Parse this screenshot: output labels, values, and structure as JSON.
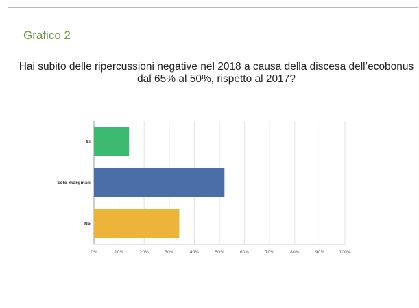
{
  "figure_label": "Grafico 2",
  "chart_data": {
    "type": "bar",
    "orientation": "horizontal",
    "title": "Hai subito delle ripercussioni negative nel 2018 a causa della discesa dell’ecobonus dal 65% al 50%, rispetto al 2017?",
    "categories": [
      "Sì",
      "Solo marginali",
      "No"
    ],
    "values": [
      14,
      52,
      34
    ],
    "colors": [
      "#3cba72",
      "#4a6ea8",
      "#edb43a"
    ],
    "xlim": [
      0,
      100
    ],
    "x_ticks": [
      "0%",
      "10%",
      "20%",
      "30%",
      "40%",
      "50%",
      "60%",
      "70%",
      "80%",
      "90%",
      "100%"
    ],
    "grid": true,
    "xlabel": "",
    "ylabel": ""
  }
}
